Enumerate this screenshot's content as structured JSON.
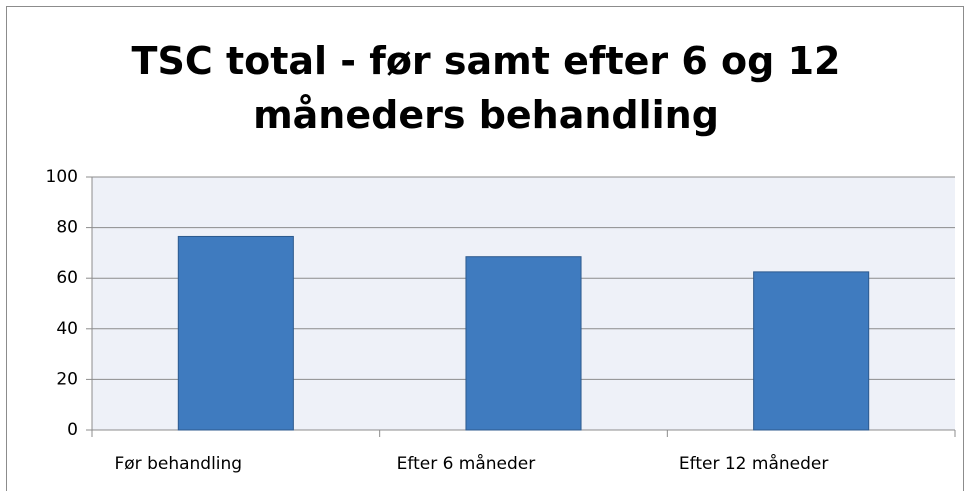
{
  "chart_data": {
    "type": "bar",
    "title": "TSC total - før samt efter 6 og 12 måneders behandling",
    "categories": [
      "Før behandling",
      "Efter 6 måneder",
      "Efter 12 måneder"
    ],
    "values": [
      76.5,
      68.5,
      62.5
    ],
    "color": "#3f7bbf",
    "ylim": [
      0,
      100
    ],
    "yticks": [
      0,
      20,
      40,
      60,
      80,
      100
    ],
    "grid": true
  }
}
